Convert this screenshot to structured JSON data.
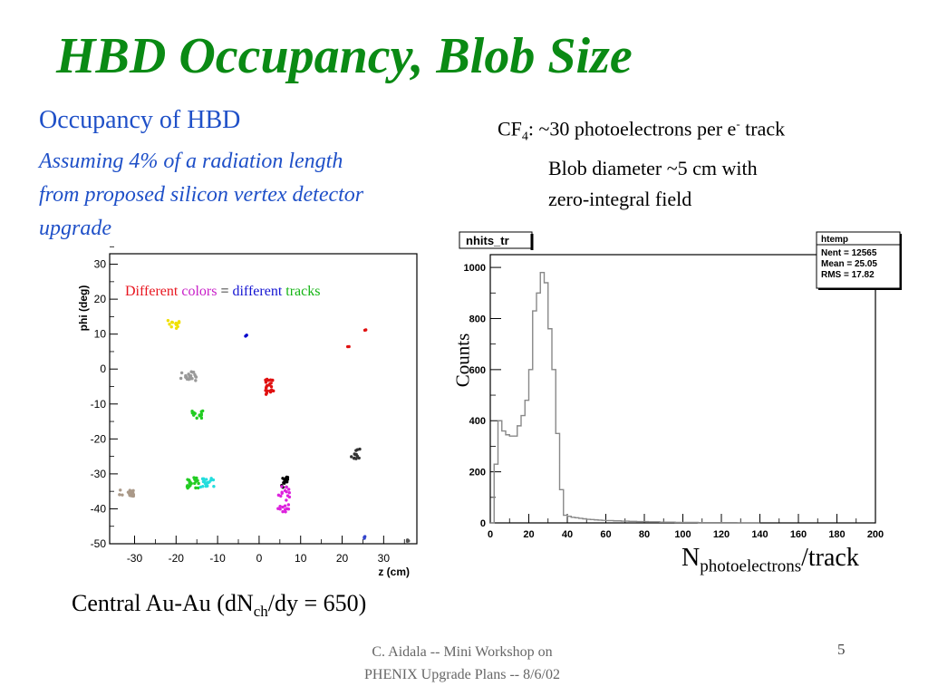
{
  "slide": {
    "title": "HBD Occupancy, Blob Size",
    "occupancy_heading": "Occupancy of HBD",
    "occupancy_line1": "Assuming 4% of a radiation length",
    "occupancy_line2": "from proposed silicon vertex detector",
    "occupancy_line3": "upgrade",
    "cf4_prefix": "CF",
    "cf4_sub": "4",
    "cf4_text": ": ~30 photoelectrons per e",
    "cf4_sup": "-",
    "cf4_track": " track",
    "cf4_line2": "Blob diameter ~5 cm with",
    "cf4_line3": "zero-integral field",
    "central_a": "Central Au-Au (dN",
    "central_sub": "ch",
    "central_b": "/dy = 650)",
    "footer_line1": "C. Aidala -- Mini Workshop on",
    "footer_line2": "PHENIX Upgrade Plans -- 8/6/02",
    "page_number": "5",
    "counts_label": "Counts",
    "npe_main": "N",
    "npe_sub": "photoelectrons",
    "npe_tail": "/track"
  },
  "chart_data": [
    {
      "type": "scatter",
      "xlabel": "z (cm)",
      "ylabel": "phi (deg)",
      "xlim": [
        -36,
        38
      ],
      "ylim": [
        -50,
        33
      ],
      "x_ticks": [
        "-30",
        "-20",
        "-10",
        "0",
        "10",
        "20",
        "30"
      ],
      "y_ticks": [
        "30",
        "20",
        "10",
        "0",
        "-10",
        "-20",
        "-30",
        "-40",
        "-50"
      ],
      "legend_parts": [
        {
          "text": "Different",
          "color": "#e8141e"
        },
        {
          "text": "colors",
          "color": "#c81ec8"
        },
        {
          "text": "=",
          "color": "#000000"
        },
        {
          "text": "different",
          "color": "#1414d2"
        },
        {
          "text": "tracks",
          "color": "#14b414"
        }
      ],
      "clusters": [
        {
          "color": "#f0e000",
          "cx": -20.5,
          "cy": 12.8,
          "sx": 0.9,
          "sy": 0.8,
          "n": 14
        },
        {
          "color": "#0000cc",
          "cx": -3.2,
          "cy": 9.5,
          "sx": 0.15,
          "sy": 0.15,
          "n": 2
        },
        {
          "color": "#e01010",
          "cx": 21.5,
          "cy": 6.5,
          "sx": 0.15,
          "sy": 0.15,
          "n": 2
        },
        {
          "color": "#e01010",
          "cx": 25.5,
          "cy": 11.2,
          "sx": 0.15,
          "sy": 0.15,
          "n": 2
        },
        {
          "color": "#999999",
          "cx": -17.0,
          "cy": -2.0,
          "sx": 1.3,
          "sy": 0.9,
          "n": 22
        },
        {
          "color": "#e01010",
          "cx": 2.5,
          "cy": -5.0,
          "sx": 0.6,
          "sy": 1.4,
          "n": 26
        },
        {
          "color": "#22cc22",
          "cx": -15.0,
          "cy": -13.0,
          "sx": 0.9,
          "sy": 0.7,
          "n": 14
        },
        {
          "color": "#333333",
          "cx": 23.0,
          "cy": -24.5,
          "sx": 0.8,
          "sy": 1.0,
          "n": 12
        },
        {
          "color": "#22cc22",
          "cx": -16.0,
          "cy": -32.5,
          "sx": 0.9,
          "sy": 1.0,
          "n": 22
        },
        {
          "color": "#22dddd",
          "cx": -12.5,
          "cy": -32.5,
          "sx": 1.0,
          "sy": 0.8,
          "n": 18
        },
        {
          "color": "#000000",
          "cx": 6.0,
          "cy": -32.5,
          "sx": 0.6,
          "sy": 1.0,
          "n": 16
        },
        {
          "color": "#dd22dd",
          "cx": 6.0,
          "cy": -37.0,
          "sx": 0.9,
          "sy": 2.5,
          "n": 24
        },
        {
          "color": "#aa9988",
          "cx": -32.0,
          "cy": -35.5,
          "sx": 1.2,
          "sy": 0.6,
          "n": 18
        },
        {
          "color": "#3344cc",
          "cx": 25.5,
          "cy": -48.0,
          "sx": 0.15,
          "sy": 0.3,
          "n": 3
        },
        {
          "color": "#555555",
          "cx": 36.0,
          "cy": -49.0,
          "sx": 0.2,
          "sy": 0.2,
          "n": 3
        }
      ]
    },
    {
      "type": "bar",
      "histogram_name": "nhits_tr",
      "stats_title": "htemp",
      "stats": [
        "Nent = 12565",
        "Mean = 25.05",
        "RMS = 17.82"
      ],
      "xlim": [
        0,
        200
      ],
      "ylim": [
        0,
        1050
      ],
      "x_ticks": [
        "0",
        "20",
        "40",
        "60",
        "80",
        "100",
        "120",
        "140",
        "160",
        "180",
        "200"
      ],
      "y_ticks": [
        "0",
        "200",
        "400",
        "600",
        "800",
        "1000"
      ],
      "bin_width": 2,
      "values": [
        0,
        230,
        400,
        360,
        345,
        340,
        340,
        380,
        420,
        480,
        600,
        830,
        900,
        980,
        940,
        760,
        600,
        350,
        130,
        30,
        26,
        22,
        20,
        18,
        16,
        14,
        13,
        12,
        11,
        10,
        9,
        9,
        8,
        8,
        7,
        7,
        6,
        6,
        5,
        5,
        5,
        4,
        4,
        4,
        3,
        3,
        3,
        3,
        2,
        2,
        2,
        2,
        2,
        2,
        1,
        1,
        1,
        1,
        1,
        1,
        1,
        1,
        1,
        1,
        0,
        0,
        0,
        0,
        0,
        0
      ]
    }
  ]
}
